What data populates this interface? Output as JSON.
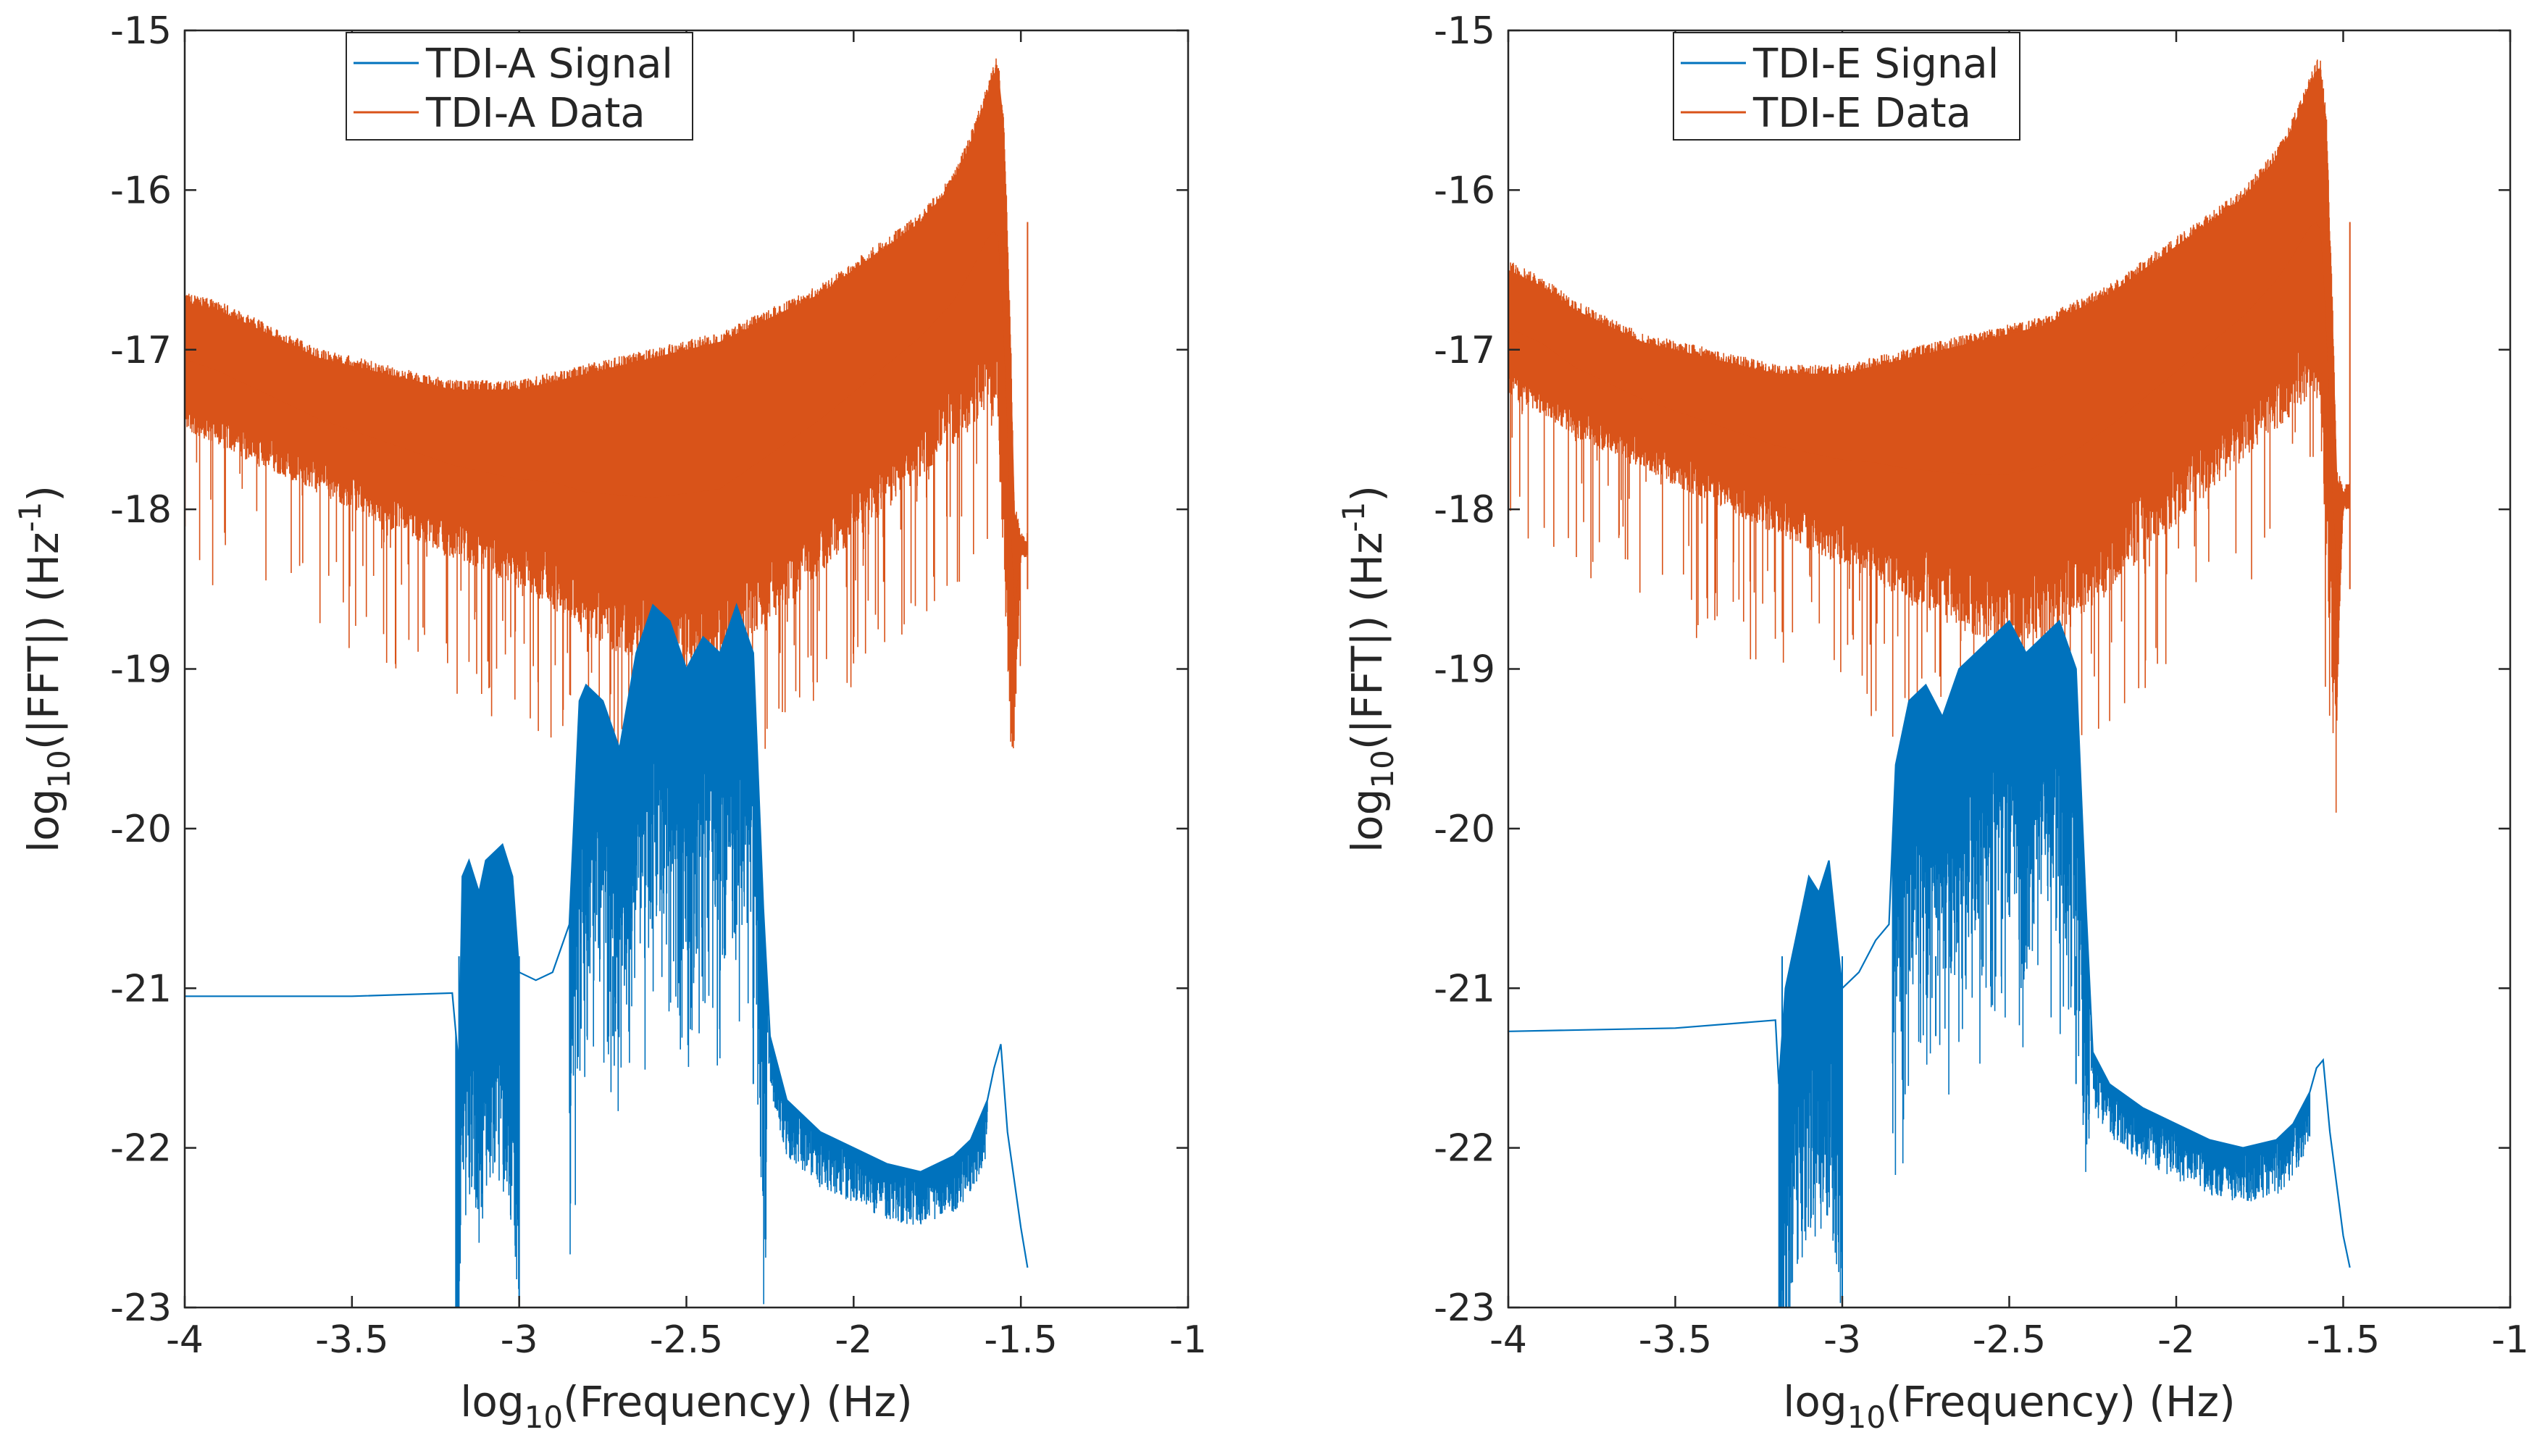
{
  "chart_data": [
    {
      "type": "line",
      "xlabel": "log10(Frequency) (Hz)",
      "ylabel": "log10(|FFT|) (Hz^-1)",
      "xlim": [
        -4,
        -1
      ],
      "ylim": [
        -23,
        -15
      ],
      "xticks": [
        -4,
        -3.5,
        -3,
        -2.5,
        -2,
        -1.5,
        -1
      ],
      "yticks": [
        -15,
        -16,
        -17,
        -18,
        -19,
        -20,
        -21,
        -22,
        -23
      ],
      "grid": false,
      "legend_position": "top-left",
      "series": [
        {
          "name": "TDI-A Signal",
          "color": "#0072BD",
          "style": "thin line",
          "x": [
            -4.0,
            -3.5,
            -3.2,
            -3.18,
            -3.17,
            -3.15,
            -3.12,
            -3.1,
            -3.05,
            -3.02,
            -3.0,
            -2.95,
            -2.9,
            -2.85,
            -2.82,
            -2.8,
            -2.75,
            -2.7,
            -2.65,
            -2.6,
            -2.55,
            -2.5,
            -2.45,
            -2.4,
            -2.35,
            -2.3,
            -2.27,
            -2.25,
            -2.2,
            -2.1,
            -2.0,
            -1.9,
            -1.8,
            -1.7,
            -1.65,
            -1.6,
            -1.58,
            -1.56,
            -1.54,
            -1.5,
            -1.48
          ],
          "y": [
            -21.05,
            -21.05,
            -21.03,
            -21.5,
            -20.3,
            -20.2,
            -20.4,
            -20.2,
            -20.1,
            -20.3,
            -20.9,
            -20.95,
            -20.9,
            -20.6,
            -19.2,
            -19.1,
            -19.2,
            -19.5,
            -18.9,
            -18.6,
            -18.7,
            -19.0,
            -18.8,
            -18.9,
            -18.6,
            -18.9,
            -20.5,
            -21.3,
            -21.7,
            -21.9,
            -22.0,
            -22.1,
            -22.15,
            -22.05,
            -21.95,
            -21.7,
            -21.5,
            -21.35,
            -21.9,
            -22.5,
            -22.75
          ]
        },
        {
          "name": "TDI-A Data",
          "color": "#D95319",
          "style": "dense noisy band",
          "x": [
            -4.0,
            -3.9,
            -3.8,
            -3.7,
            -3.6,
            -3.5,
            -3.4,
            -3.3,
            -3.2,
            -3.1,
            -3.0,
            -2.9,
            -2.8,
            -2.7,
            -2.6,
            -2.5,
            -2.4,
            -2.3,
            -2.2,
            -2.1,
            -2.0,
            -1.9,
            -1.8,
            -1.7,
            -1.65,
            -1.6,
            -1.57,
            -1.55,
            -1.53,
            -1.52,
            -1.5,
            -1.48
          ],
          "upper": [
            -16.7,
            -16.75,
            -16.85,
            -16.95,
            -17.05,
            -17.1,
            -17.15,
            -17.2,
            -17.25,
            -17.25,
            -17.25,
            -17.2,
            -17.15,
            -17.1,
            -17.05,
            -17.0,
            -16.95,
            -16.85,
            -16.75,
            -16.65,
            -16.5,
            -16.35,
            -16.2,
            -15.95,
            -15.7,
            -15.4,
            -15.2,
            -15.6,
            -17.0,
            -18.0,
            -18.2,
            -18.2
          ],
          "lower": [
            -17.5,
            -17.6,
            -17.7,
            -17.8,
            -17.9,
            -18.0,
            -18.1,
            -18.2,
            -18.3,
            -18.4,
            -18.5,
            -18.6,
            -18.8,
            -18.9,
            -19.0,
            -19.0,
            -19.0,
            -18.8,
            -18.6,
            -18.4,
            -18.2,
            -18.0,
            -17.8,
            -17.6,
            -17.5,
            -17.4,
            -17.5,
            -18.5,
            -19.5,
            -19.5,
            -18.3,
            -18.3
          ]
        }
      ]
    },
    {
      "type": "line",
      "xlabel": "log10(Frequency) (Hz)",
      "ylabel": "log10(|FFT|) (Hz^-1)",
      "xlim": [
        -4,
        -1
      ],
      "ylim": [
        -23,
        -15
      ],
      "xticks": [
        -4,
        -3.5,
        -3,
        -2.5,
        -2,
        -1.5,
        -1
      ],
      "yticks": [
        -15,
        -16,
        -17,
        -18,
        -19,
        -20,
        -21,
        -22,
        -23
      ],
      "grid": false,
      "legend_position": "top-center",
      "series": [
        {
          "name": "TDI-E Signal",
          "color": "#0072BD",
          "style": "thin line",
          "x": [
            -4.0,
            -3.5,
            -3.2,
            -3.19,
            -3.17,
            -3.15,
            -3.12,
            -3.1,
            -3.07,
            -3.04,
            -3.0,
            -2.95,
            -2.9,
            -2.86,
            -2.84,
            -2.8,
            -2.75,
            -2.7,
            -2.65,
            -2.6,
            -2.55,
            -2.5,
            -2.45,
            -2.4,
            -2.35,
            -2.3,
            -2.27,
            -2.25,
            -2.2,
            -2.1,
            -2.0,
            -1.9,
            -1.8,
            -1.7,
            -1.65,
            -1.6,
            -1.58,
            -1.56,
            -1.54,
            -1.5,
            -1.48
          ],
          "y": [
            -21.27,
            -21.25,
            -21.2,
            -21.6,
            -21.0,
            -20.8,
            -20.5,
            -20.3,
            -20.4,
            -20.2,
            -21.0,
            -20.9,
            -20.7,
            -20.6,
            -19.6,
            -19.2,
            -19.1,
            -19.3,
            -19.0,
            -18.9,
            -18.8,
            -18.7,
            -18.9,
            -18.8,
            -18.7,
            -19.0,
            -20.5,
            -21.4,
            -21.6,
            -21.75,
            -21.85,
            -21.95,
            -22.0,
            -21.95,
            -21.85,
            -21.65,
            -21.5,
            -21.45,
            -21.9,
            -22.55,
            -22.75
          ]
        },
        {
          "name": "TDI-E Data",
          "color": "#D95319",
          "style": "dense noisy band",
          "x": [
            -4.0,
            -3.9,
            -3.8,
            -3.7,
            -3.6,
            -3.5,
            -3.4,
            -3.3,
            -3.2,
            -3.1,
            -3.0,
            -2.9,
            -2.8,
            -2.7,
            -2.6,
            -2.5,
            -2.4,
            -2.3,
            -2.2,
            -2.1,
            -2.0,
            -1.9,
            -1.8,
            -1.7,
            -1.65,
            -1.6,
            -1.57,
            -1.55,
            -1.53,
            -1.52,
            -1.5,
            -1.48
          ],
          "upper": [
            -16.5,
            -16.6,
            -16.75,
            -16.85,
            -16.95,
            -17.0,
            -17.05,
            -17.1,
            -17.15,
            -17.15,
            -17.15,
            -17.1,
            -17.05,
            -17.0,
            -16.95,
            -16.9,
            -16.85,
            -16.75,
            -16.65,
            -16.5,
            -16.35,
            -16.2,
            -16.05,
            -15.8,
            -15.6,
            -15.35,
            -15.2,
            -15.6,
            -16.9,
            -17.8,
            -17.9,
            -17.9
          ],
          "lower": [
            -17.3,
            -17.4,
            -17.55,
            -17.65,
            -17.75,
            -17.85,
            -17.95,
            -18.05,
            -18.15,
            -18.25,
            -18.35,
            -18.45,
            -18.6,
            -18.7,
            -18.8,
            -18.85,
            -18.8,
            -18.7,
            -18.5,
            -18.3,
            -18.1,
            -17.9,
            -17.7,
            -17.5,
            -17.4,
            -17.3,
            -17.4,
            -18.4,
            -19.3,
            -19.4,
            -18.0,
            -18.0
          ]
        }
      ]
    }
  ]
}
